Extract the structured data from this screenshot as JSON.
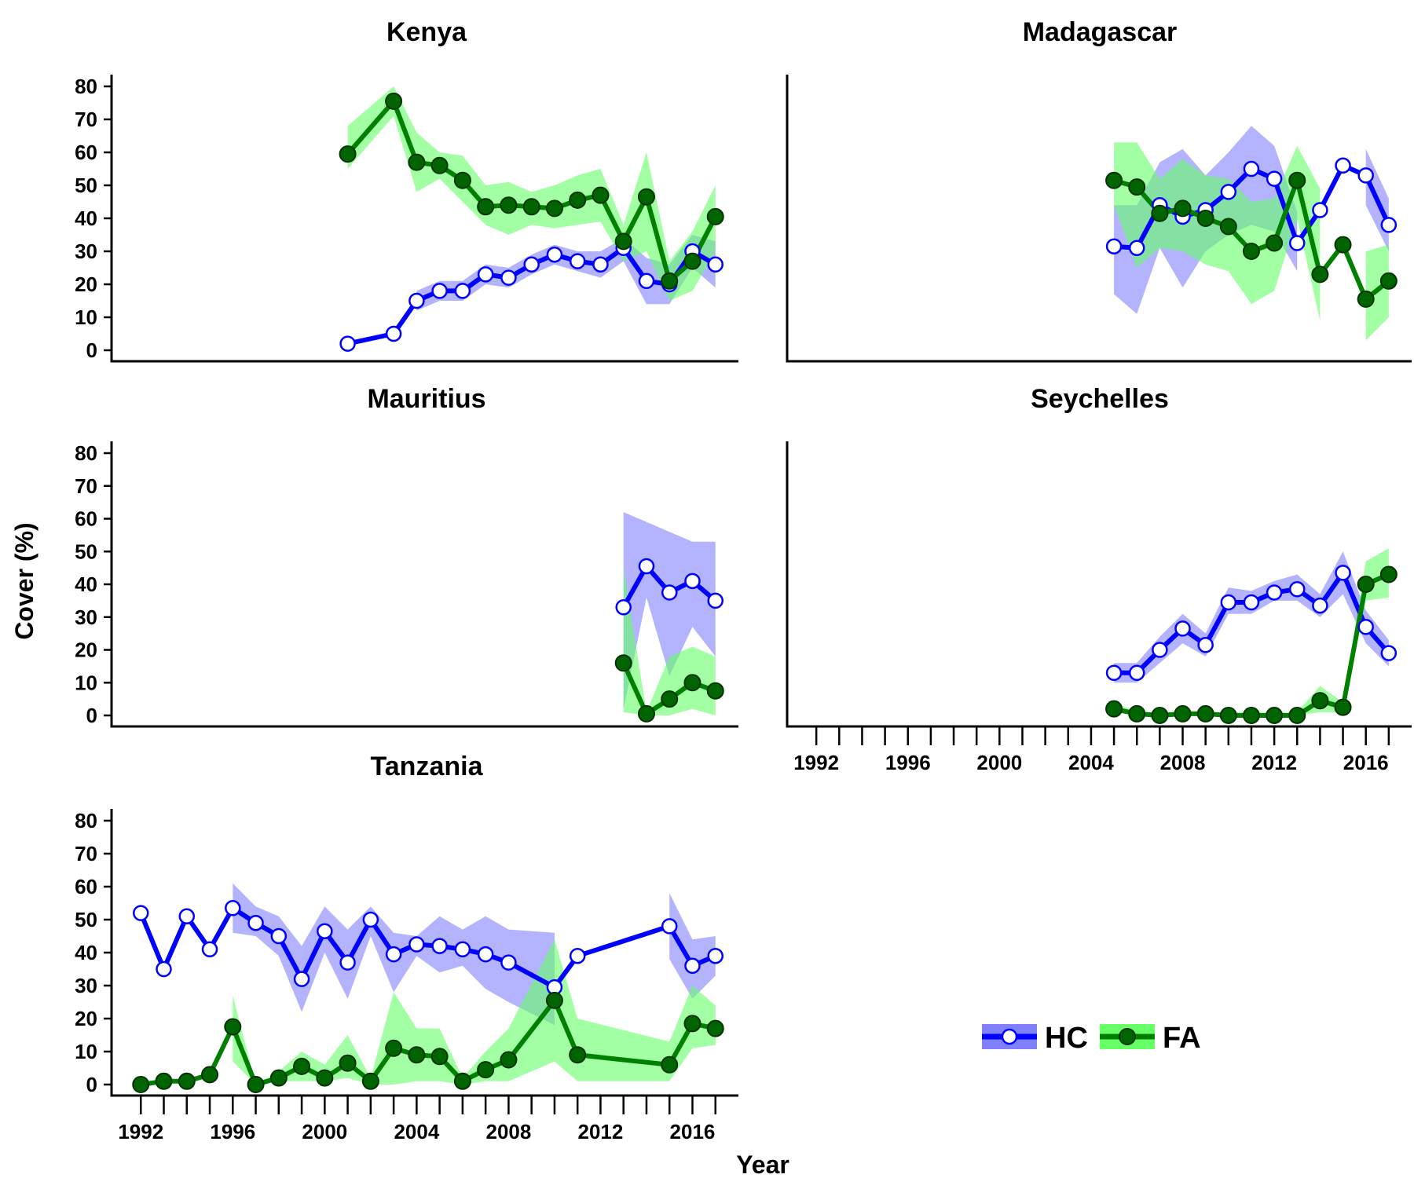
{
  "chart_data": {
    "type": "line",
    "xlabel": "Year",
    "ylabel": "Cover (%)",
    "xlim": [
      1991,
      2018
    ],
    "ylim": [
      0,
      80
    ],
    "x_ticks": [
      1992,
      1996,
      2000,
      2004,
      2008,
      2012,
      2016
    ],
    "y_ticks": [
      0,
      10,
      20,
      30,
      40,
      50,
      60,
      70,
      80
    ],
    "colors": {
      "HC": "#0000ff",
      "HC_band": "#8080ff",
      "FA": "#008000",
      "FA_band": "#66ff66"
    },
    "legend": {
      "placement": "bottom-right",
      "entries": [
        "HC",
        "FA"
      ]
    },
    "panels": [
      {
        "title": "Kenya",
        "series": [
          {
            "name": "HC",
            "x": [
              2001,
              2003,
              2004,
              2005,
              2006,
              2007,
              2008,
              2009,
              2010,
              2011,
              2012,
              2013,
              2014,
              2015,
              2016,
              2017
            ],
            "y": [
              2,
              5,
              15,
              18,
              18,
              23,
              22,
              26,
              29,
              27,
              26,
              31,
              21,
              20,
              30,
              26
            ],
            "lower": [
              null,
              null,
              12,
              15,
              15,
              20,
              19,
              23,
              26,
              24,
              22,
              27,
              14,
              14,
              25,
              19
            ],
            "upper": [
              null,
              null,
              18,
              21,
              21,
              26,
              25,
              29,
              32,
              30,
              30,
              34,
              28,
              26,
              35,
              33
            ]
          },
          {
            "name": "FA",
            "x": [
              2001,
              2003,
              2004,
              2005,
              2006,
              2007,
              2008,
              2009,
              2010,
              2011,
              2012,
              2013,
              2014,
              2015,
              2016,
              2017
            ],
            "y": [
              59.5,
              75.5,
              57,
              56,
              51.5,
              43.5,
              44,
              43.5,
              43,
              45.5,
              47,
              33,
              46.5,
              21,
              27,
              40.5
            ],
            "lower": [
              55,
              71,
              48,
              52,
              45,
              38,
              35,
              38,
              37,
              38,
              39,
              27,
              30,
              15,
              18,
              30
            ],
            "upper": [
              68,
              80,
              66,
              60,
              59,
              50,
              51,
              48,
              50,
              53,
              55,
              38,
              60,
              27,
              36,
              50
            ]
          }
        ]
      },
      {
        "title": "Madagascar",
        "series": [
          {
            "name": "HC",
            "x": [
              2005,
              2006,
              2007,
              2008,
              2009,
              2010,
              2011,
              2012,
              2013,
              2014,
              2015,
              2016,
              2017
            ],
            "y": [
              31.5,
              31,
              44,
              40.5,
              42.5,
              48,
              55,
              52,
              32.5,
              42.5,
              56,
              53,
              38
            ],
            "lower": [
              17,
              11,
              31,
              19,
              30,
              35,
              38,
              36,
              24,
              null,
              null,
              44,
              30
            ],
            "upper": [
              44,
              44,
              57,
              61,
              53,
              60,
              68,
              62,
              42,
              null,
              null,
              61,
              46
            ]
          },
          {
            "name": "FA",
            "x": [
              2005,
              2006,
              2007,
              2008,
              2009,
              2010,
              2011,
              2012,
              2013,
              2014,
              2015,
              2016,
              2017
            ],
            "y": [
              51.5,
              49.5,
              41.5,
              43,
              40,
              37.5,
              30,
              32.5,
              51.5,
              23,
              32,
              15.5,
              21
            ],
            "lower": [
              44,
              25,
              31,
              30,
              26,
              24,
              14,
              18,
              40,
              9,
              null,
              3,
              10
            ],
            "upper": [
              63,
              63,
              52,
              58,
              53,
              52,
              45,
              46,
              62,
              49,
              null,
              30,
              32
            ]
          }
        ]
      },
      {
        "title": "Mauritius",
        "series": [
          {
            "name": "HC",
            "x": [
              2013,
              2014,
              2015,
              2016,
              2017
            ],
            "y": [
              33,
              45.5,
              37.5,
              41,
              35
            ],
            "lower": [
              2,
              36,
              12,
              27,
              18
            ],
            "upper": [
              62,
              59,
              56,
              53,
              53
            ]
          },
          {
            "name": "FA",
            "x": [
              2013,
              2014,
              2015,
              2016,
              2017
            ],
            "y": [
              16,
              0.5,
              5,
              10,
              7.5
            ],
            "lower": [
              1,
              0,
              0,
              2,
              0
            ],
            "upper": [
              45,
              1,
              18,
              21,
              18
            ]
          }
        ]
      },
      {
        "title": "Seychelles",
        "series": [
          {
            "name": "HC",
            "x": [
              2005,
              2006,
              2007,
              2008,
              2009,
              2010,
              2011,
              2012,
              2013,
              2014,
              2015,
              2016,
              2017
            ],
            "y": [
              13,
              13,
              20,
              26.5,
              21.5,
              34.5,
              34.5,
              37.5,
              38.5,
              33.5,
              43.5,
              27,
              19
            ],
            "lower": [
              10,
              10,
              16,
              22,
              18,
              31,
              31,
              35,
              35,
              30,
              37,
              22,
              15
            ],
            "upper": [
              16,
              16,
              24,
              31,
              25,
              39,
              38,
              41,
              43,
              37,
              50,
              32,
              23
            ]
          },
          {
            "name": "FA",
            "x": [
              2005,
              2006,
              2007,
              2008,
              2009,
              2010,
              2011,
              2012,
              2013,
              2014,
              2015,
              2016,
              2017
            ],
            "y": [
              2,
              0.5,
              0,
              0.5,
              0.5,
              0,
              0,
              0,
              0,
              4.5,
              2.5,
              40,
              43
            ],
            "lower": [
              1,
              0,
              0,
              0,
              0,
              0,
              0,
              0,
              0,
              1,
              1,
              35,
              36
            ],
            "upper": [
              4,
              1,
              1,
              1,
              1,
              1,
              1,
              1,
              1,
              9,
              4,
              47,
              51
            ]
          }
        ]
      },
      {
        "title": "Tanzania",
        "series": [
          {
            "name": "HC",
            "x": [
              1992,
              1993,
              1994,
              1995,
              1996,
              1997,
              1998,
              1999,
              2000,
              2001,
              2002,
              2003,
              2004,
              2005,
              2006,
              2007,
              2008,
              2010,
              2011,
              2015,
              2016,
              2017
            ],
            "y": [
              52,
              35,
              51,
              41,
              53.5,
              49,
              45,
              32,
              46.5,
              37,
              50,
              39.5,
              42.5,
              42,
              41,
              39.5,
              37,
              29.5,
              39,
              48,
              36,
              39
            ],
            "lower": [
              null,
              null,
              null,
              null,
              46,
              45,
              39,
              22,
              40,
              26,
              45,
              28,
              39,
              34,
              36,
              29,
              25,
              18,
              null,
              38,
              26,
              33
            ],
            "upper": [
              null,
              null,
              null,
              null,
              61,
              54,
              51,
              42,
              54,
              47,
              54,
              46,
              45,
              51,
              47,
              51,
              47,
              46,
              null,
              58,
              44,
              45
            ]
          },
          {
            "name": "FA",
            "x": [
              1992,
              1993,
              1994,
              1995,
              1996,
              1997,
              1998,
              1999,
              2000,
              2001,
              2002,
              2003,
              2004,
              2005,
              2006,
              2007,
              2008,
              2010,
              2011,
              2015,
              2016,
              2017
            ],
            "y": [
              0,
              1,
              1,
              3,
              17.5,
              0,
              2,
              5.5,
              2,
              6.5,
              1,
              11,
              9,
              8.5,
              1,
              4.5,
              7.5,
              25.5,
              9,
              6,
              18.5,
              17
            ],
            "lower": [
              null,
              null,
              null,
              null,
              7,
              0,
              1,
              1,
              1,
              2,
              0,
              0,
              1,
              1,
              0,
              1,
              1,
              7,
              1,
              1,
              11,
              12
            ],
            "upper": [
              null,
              null,
              null,
              null,
              27,
              0,
              4,
              10,
              6,
              15,
              2,
              28,
              17,
              17,
              2,
              10,
              17,
              44,
              20,
              13,
              30,
              24
            ]
          }
        ]
      }
    ]
  }
}
